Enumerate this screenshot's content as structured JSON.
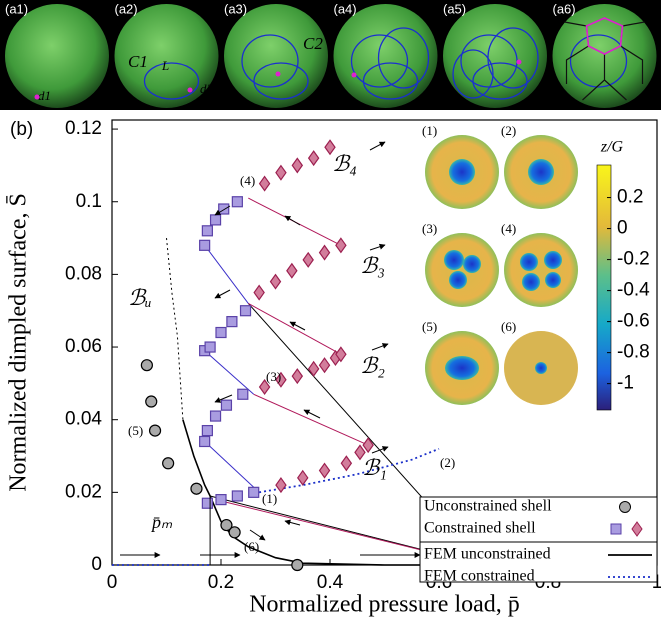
{
  "panels": {
    "labels": [
      "(a1)",
      "(a2)",
      "(a3)",
      "(a4)",
      "(a5)",
      "(a6)"
    ],
    "annotations": [
      "d1",
      "d2",
      "C1",
      "L",
      "C2"
    ]
  },
  "chart_data": {
    "type": "scatter",
    "panel_label": "(b)",
    "x_label": "Normalized pressure load, p̄",
    "y_label": "Normalized dimpled surface, S̄",
    "xlim": [
      0,
      1
    ],
    "ylim": [
      0,
      0.1225
    ],
    "xticks": [
      0,
      0.2,
      0.4,
      0.6,
      0.8,
      1
    ],
    "yticks": [
      0,
      0.02,
      0.04,
      0.06,
      0.08,
      0.1,
      0.12
    ],
    "series": [
      {
        "name": "Unconstrained shell",
        "color": "#aaaaaa",
        "x": [
          0.064,
          0.072,
          0.079,
          0.103,
          0.155,
          0.21,
          0.225,
          0.34,
          0.68
        ],
        "y": [
          0.055,
          0.045,
          0.037,
          0.028,
          0.021,
          0.011,
          0.009,
          0,
          0
        ]
      },
      {
        "name": "Constrained shell",
        "color": "#a99ce0",
        "color2": "#d27d9b",
        "square_x": [
          0.175,
          0.2,
          0.23,
          0.26,
          0.17,
          0.175,
          0.19,
          0.21,
          0.24,
          0.17,
          0.18,
          0.2,
          0.22,
          0.245,
          0.17,
          0.175,
          0.19,
          0.205,
          0.23
        ],
        "square_y": [
          0.017,
          0.018,
          0.019,
          0.02,
          0.034,
          0.037,
          0.041,
          0.044,
          0.047,
          0.059,
          0.06,
          0.064,
          0.067,
          0.07,
          0.088,
          0.092,
          0.095,
          0.098,
          0.1
        ],
        "diamond_x": [
          0.31,
          0.35,
          0.39,
          0.43,
          0.455,
          0.47,
          0.28,
          0.31,
          0.34,
          0.37,
          0.39,
          0.41,
          0.42,
          0.27,
          0.3,
          0.33,
          0.36,
          0.39,
          0.42,
          0.28,
          0.31,
          0.34,
          0.37,
          0.4
        ],
        "diamond_y": [
          0.022,
          0.024,
          0.026,
          0.028,
          0.031,
          0.033,
          0.049,
          0.051,
          0.052,
          0.054,
          0.055,
          0.057,
          0.058,
          0.075,
          0.078,
          0.081,
          0.084,
          0.086,
          0.088,
          0.105,
          0.108,
          0.11,
          0.112,
          0.115
        ]
      },
      {
        "name": "FEM unconstrained",
        "color": "#000000",
        "dash": false,
        "x": [
          0.13,
          0.15,
          0.17,
          0.18,
          0.2,
          0.22,
          0.25,
          0.3,
          0.35,
          0.5,
          0.7,
          1
        ],
        "y": [
          0.04,
          0.03,
          0.022,
          0.019,
          0.012,
          0.008,
          0.005,
          0.002,
          0.0005,
          0,
          0,
          0
        ]
      },
      {
        "name": "FEM constrained",
        "color": "#1a2fc9",
        "dash": true,
        "x": [
          0,
          0.18,
          0.19,
          0.27,
          0.35,
          0.45,
          0.55,
          0.6
        ],
        "y": [
          0,
          0,
          null,
          0.02,
          0.022,
          0.025,
          0.029,
          0.032
        ]
      }
    ],
    "curves": [
      {
        "color": "#000000",
        "dash": true,
        "x": [
          0.1,
          0.11,
          0.12,
          0.13
        ],
        "y": [
          0.09,
          0.075,
          0.063,
          0.04
        ]
      },
      {
        "color": "#000000",
        "dash": false,
        "x": [
          0.25,
          0.68
        ],
        "y": [
          0.072,
          0
        ]
      },
      {
        "color": "#000000",
        "dash": false,
        "x": [
          0.18,
          0.68
        ],
        "y": [
          0.019,
          0
        ]
      },
      {
        "color": "#b0185a",
        "dash": false,
        "x": [
          0.25,
          0.42
        ],
        "y": [
          0.101,
          0.088
        ]
      },
      {
        "color": "#b0185a",
        "dash": false,
        "x": [
          0.25,
          0.42
        ],
        "y": [
          0.072,
          0.058
        ]
      },
      {
        "color": "#b0185a",
        "dash": false,
        "x": [
          0.26,
          0.47
        ],
        "y": [
          0.047,
          0.033
        ]
      },
      {
        "color": "#b0185a",
        "dash": false,
        "x": [
          0.19,
          0.68
        ],
        "y": [
          0.018,
          0
        ]
      },
      {
        "color": "#3a2fc9",
        "dash": false,
        "x": [
          0.17,
          0.25
        ],
        "y": [
          0.088,
          0.072
        ]
      },
      {
        "color": "#3a2fc9",
        "dash": false,
        "x": [
          0.17,
          0.26
        ],
        "y": [
          0.059,
          0.047
        ]
      },
      {
        "color": "#3a2fc9",
        "dash": false,
        "x": [
          0.17,
          0.27
        ],
        "y": [
          0.034,
          0.02
        ]
      }
    ],
    "annotations": [
      "ℬ₄",
      "ℬ₃",
      "ℬ₂",
      "ℬ₁",
      "ℬᵤ",
      "p̄ₘ",
      "(1)",
      "(2)",
      "(3)",
      "(4)",
      "(5)",
      "(6)"
    ],
    "insets": {
      "labels": [
        "(1)",
        "(2)",
        "(3)",
        "(4)",
        "(5)",
        "(6)"
      ],
      "colorbar_title": "z/G",
      "clim": [
        -1.17,
        0.41
      ],
      "cticks": [
        0.2,
        0,
        -0.2,
        -0.4,
        -0.6,
        -0.8,
        -1
      ]
    }
  }
}
